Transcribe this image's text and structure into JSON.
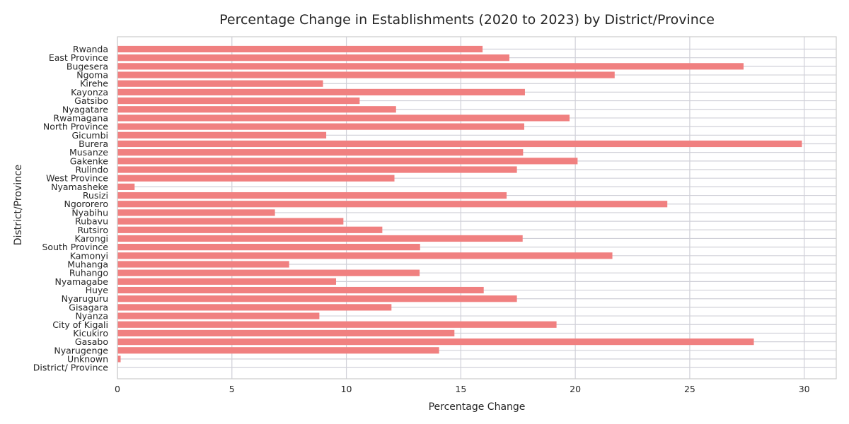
{
  "chart_data": {
    "type": "bar",
    "orientation": "horizontal",
    "title": "Percentage Change in Establishments (2020 to 2023) by District/Province",
    "xlabel": "Percentage Change",
    "ylabel": "District/Province",
    "xlim": [
      0,
      31.4
    ],
    "xticks": [
      0,
      5,
      10,
      15,
      20,
      25,
      30
    ],
    "grid": true,
    "bar_color": "#f08080",
    "categories": [
      "Rwanda",
      "East Province",
      "Bugesera",
      "Ngoma",
      "Kirehe",
      "Kayonza",
      "Gatsibo",
      "Nyagatare",
      "Rwamagana",
      "North Province",
      "Gicumbi",
      "Burera",
      "Musanze",
      "Gakenke",
      "Rulindo",
      "West Province",
      "Nyamasheke",
      "Rusizi",
      "Ngororero",
      "Nyabihu",
      "Rubavu",
      "Rutsiro",
      "Karongi",
      "South Province",
      "Kamonyi",
      "Muhanga",
      "Ruhango",
      "Nyamagabe",
      "Huye",
      "Nyaruguru",
      "Gisagara",
      "Nyanza",
      "City of Kigali",
      "Kicukiro",
      "Gasabo",
      "Nyarugenge",
      "Unknown",
      "District/ Province"
    ],
    "values": [
      15.95,
      17.12,
      27.35,
      21.72,
      8.98,
      17.8,
      10.58,
      12.17,
      19.75,
      17.77,
      9.12,
      29.9,
      17.72,
      20.1,
      17.45,
      12.1,
      0.75,
      17.0,
      24.02,
      6.88,
      9.87,
      11.57,
      17.7,
      13.22,
      21.62,
      7.5,
      13.2,
      9.55,
      16.0,
      17.45,
      11.97,
      8.82,
      19.18,
      14.72,
      27.8,
      14.05,
      0.14,
      0
    ]
  }
}
